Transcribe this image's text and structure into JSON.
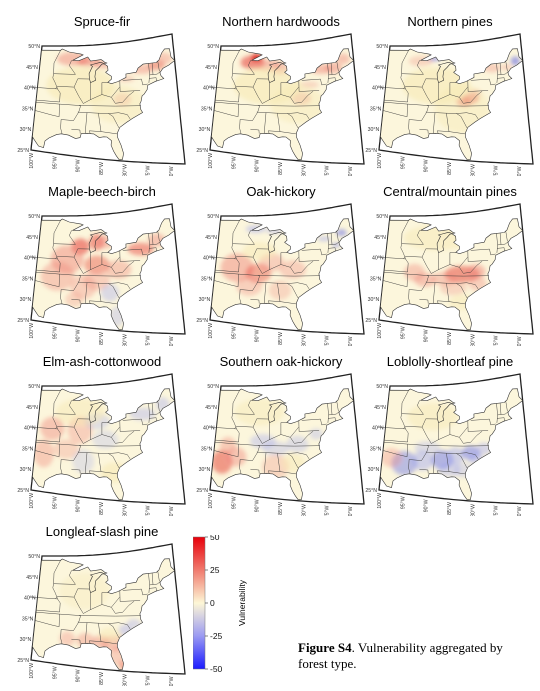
{
  "panels": [
    {
      "title": "Spruce-fir",
      "palette": "spruce"
    },
    {
      "title": "Northern hardwoods",
      "palette": "northern"
    },
    {
      "title": "Northern pines",
      "palette": "npines"
    },
    {
      "title": "Maple-beech-birch",
      "palette": "maple"
    },
    {
      "title": "Oak-hickory",
      "palette": "oak"
    },
    {
      "title": "Central/mountain pines",
      "palette": "central"
    },
    {
      "title": "Elm-ash-cottonwood",
      "palette": "elm"
    },
    {
      "title": "Southern oak-hickory",
      "palette": "soak"
    },
    {
      "title": "Loblolly-shortleaf pine",
      "palette": "lob"
    },
    {
      "title": "Longleaf-slash pine",
      "palette": "long"
    }
  ],
  "map_axes": {
    "lat_labels": [
      "50°N",
      "45°N",
      "40°N",
      "35°N",
      "30°N",
      "25°N"
    ],
    "lon_labels": [
      "100°W",
      "95°W",
      "90°W",
      "85°W",
      "80°W",
      "75°W",
      "70°W"
    ]
  },
  "colorbar": {
    "label": "Vulnerability",
    "ticks": [
      "50",
      "25",
      "0",
      "-25",
      "-50"
    ],
    "colors": {
      "high": "#e8000b",
      "mid": "#fdf7d6",
      "low": "#1a1aff"
    }
  },
  "caption": {
    "label": "Figure S4",
    "text": ". Vulnerability aggregated by forest type."
  }
}
